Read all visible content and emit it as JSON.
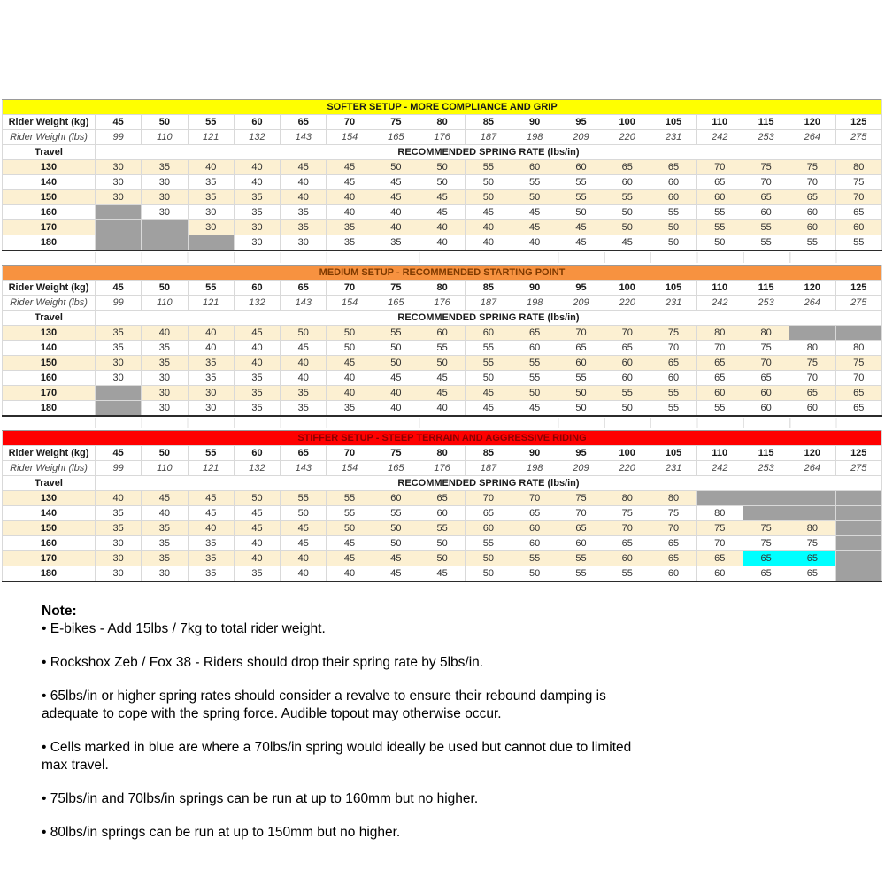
{
  "shared": {
    "rider_weight_kg_label": "Rider Weight (kg)",
    "rider_weight_lbs_label": "Rider Weight (lbs)",
    "travel_label": "Travel",
    "spring_rate_header": "RECOMMENDED SPRING RATE (lbs/in)",
    "columns_kg": [
      "45",
      "50",
      "55",
      "60",
      "65",
      "70",
      "75",
      "80",
      "85",
      "90",
      "95",
      "100",
      "105",
      "110",
      "115",
      "120",
      "125"
    ],
    "columns_lbs": [
      "99",
      "110",
      "121",
      "132",
      "143",
      "154",
      "165",
      "176",
      "187",
      "198",
      "209",
      "220",
      "231",
      "242",
      "253",
      "264",
      "275"
    ]
  },
  "colors": {
    "softer_band_bg": "#FFFF00",
    "softer_band_text": "#1a1a1a",
    "medium_band_bg": "#F79240",
    "medium_band_text": "#7F3A00",
    "stiffer_band_bg": "#FF0000",
    "stiffer_band_text": "#8B0000",
    "row_stripe": "#FCF0D2",
    "unavailable_fill": "#A0A0A0",
    "blue_highlight_fill": "#00FFFF"
  },
  "tables": [
    {
      "id": "softer",
      "title": "SOFTER SETUP - MORE COMPLIANCE AND GRIP",
      "band_bg": "#FFFF00",
      "band_fg": "#1a1a1a",
      "rows": [
        {
          "travel": "130",
          "cells": [
            "30",
            "35",
            "40",
            "40",
            "45",
            "45",
            "50",
            "50",
            "55",
            "60",
            "60",
            "65",
            "65",
            "70",
            "75",
            "75",
            "80"
          ]
        },
        {
          "travel": "140",
          "cells": [
            "30",
            "30",
            "35",
            "40",
            "40",
            "45",
            "45",
            "50",
            "50",
            "55",
            "55",
            "60",
            "60",
            "65",
            "70",
            "70",
            "75"
          ]
        },
        {
          "travel": "150",
          "cells": [
            "30",
            "30",
            "35",
            "35",
            "40",
            "40",
            "45",
            "45",
            "50",
            "50",
            "55",
            "55",
            "60",
            "60",
            "65",
            "65",
            "70"
          ]
        },
        {
          "travel": "160",
          "cells": [
            {
              "fill": "gray"
            },
            "30",
            "30",
            "35",
            "35",
            "40",
            "40",
            "45",
            "45",
            "45",
            "50",
            "50",
            "55",
            "55",
            "60",
            "60",
            "65"
          ]
        },
        {
          "travel": "170",
          "cells": [
            {
              "fill": "gray"
            },
            {
              "fill": "gray"
            },
            "30",
            "30",
            "35",
            "35",
            "40",
            "40",
            "40",
            "45",
            "45",
            "50",
            "50",
            "55",
            "55",
            "60",
            "60"
          ]
        },
        {
          "travel": "180",
          "cells": [
            {
              "fill": "gray"
            },
            {
              "fill": "gray"
            },
            {
              "fill": "gray"
            },
            "30",
            "30",
            "35",
            "35",
            "40",
            "40",
            "40",
            "45",
            "45",
            "50",
            "50",
            "55",
            "55",
            "55"
          ]
        }
      ]
    },
    {
      "id": "medium",
      "title": "MEDIUM SETUP - RECOMMENDED STARTING POINT",
      "band_bg": "#F79240",
      "band_fg": "#7F3A00",
      "rows": [
        {
          "travel": "130",
          "cells": [
            "35",
            "40",
            "40",
            "45",
            "50",
            "50",
            "55",
            "60",
            "60",
            "65",
            "70",
            "70",
            "75",
            "80",
            "80",
            {
              "fill": "gray"
            },
            {
              "fill": "gray"
            }
          ]
        },
        {
          "travel": "140",
          "cells": [
            "35",
            "35",
            "40",
            "40",
            "45",
            "50",
            "50",
            "55",
            "55",
            "60",
            "65",
            "65",
            "70",
            "70",
            "75",
            "80",
            "80"
          ]
        },
        {
          "travel": "150",
          "cells": [
            "30",
            "35",
            "35",
            "40",
            "40",
            "45",
            "50",
            "50",
            "55",
            "55",
            "60",
            "60",
            "65",
            "65",
            "70",
            "75",
            "75"
          ]
        },
        {
          "travel": "160",
          "cells": [
            "30",
            "30",
            "35",
            "35",
            "40",
            "40",
            "45",
            "45",
            "50",
            "55",
            "55",
            "60",
            "60",
            "65",
            "65",
            "70",
            "70"
          ]
        },
        {
          "travel": "170",
          "cells": [
            {
              "fill": "gray"
            },
            "30",
            "30",
            "35",
            "35",
            "40",
            "40",
            "45",
            "45",
            "50",
            "50",
            "55",
            "55",
            "60",
            "60",
            "65",
            "65"
          ]
        },
        {
          "travel": "180",
          "cells": [
            {
              "fill": "gray"
            },
            "30",
            "30",
            "35",
            "35",
            "35",
            "40",
            "40",
            "45",
            "45",
            "50",
            "50",
            "55",
            "55",
            "60",
            "60",
            "65"
          ]
        }
      ]
    },
    {
      "id": "stiffer",
      "title": "STIFFER SETUP - STEEP TERRAIN AND AGGRESSIVE RIDING",
      "band_bg": "#FF0000",
      "band_fg": "#8B0000",
      "rows": [
        {
          "travel": "130",
          "cells": [
            "40",
            "45",
            "45",
            "50",
            "55",
            "55",
            "60",
            "65",
            "70",
            "70",
            "75",
            "80",
            "80",
            {
              "fill": "gray"
            },
            {
              "fill": "gray"
            },
            {
              "fill": "gray"
            },
            {
              "fill": "gray"
            }
          ]
        },
        {
          "travel": "140",
          "cells": [
            "35",
            "40",
            "45",
            "45",
            "50",
            "55",
            "55",
            "60",
            "65",
            "65",
            "70",
            "75",
            "75",
            "80",
            {
              "fill": "gray"
            },
            {
              "fill": "gray"
            },
            {
              "fill": "gray"
            }
          ]
        },
        {
          "travel": "150",
          "cells": [
            "35",
            "35",
            "40",
            "45",
            "45",
            "50",
            "50",
            "55",
            "60",
            "60",
            "65",
            "70",
            "70",
            "75",
            "75",
            "80",
            {
              "fill": "gray"
            }
          ]
        },
        {
          "travel": "160",
          "cells": [
            "30",
            "35",
            "35",
            "40",
            "45",
            "45",
            "50",
            "50",
            "55",
            "60",
            "60",
            "65",
            "65",
            "70",
            "75",
            "75",
            {
              "fill": "gray"
            }
          ]
        },
        {
          "travel": "170",
          "cells": [
            "30",
            "35",
            "35",
            "40",
            "40",
            "45",
            "45",
            "50",
            "50",
            "55",
            "55",
            "60",
            "65",
            "65",
            {
              "v": "65",
              "fill": "cyan"
            },
            {
              "v": "65",
              "fill": "cyan"
            },
            {
              "fill": "gray"
            }
          ]
        },
        {
          "travel": "180",
          "cells": [
            "30",
            "30",
            "35",
            "35",
            "40",
            "40",
            "45",
            "45",
            "50",
            "50",
            "55",
            "55",
            "60",
            "60",
            "65",
            "65",
            {
              "fill": "gray"
            }
          ]
        }
      ]
    }
  ],
  "notes": {
    "heading": "Note:",
    "bullets": [
      "• E-bikes - Add 15lbs / 7kg to total rider weight.",
      "• Rockshox Zeb / Fox 38 - Riders should drop their spring rate by 5lbs/in.",
      "• 65lbs/in or higher spring rates should consider a revalve to ensure their rebound damping is\nadequate to cope with the spring force. Audible topout may otherwise occur.",
      "• Cells marked in blue are where a 70lbs/in spring would ideally be used but cannot due to limited\nmax travel.",
      "• 75lbs/in and 70lbs/in springs can be run at up to 160mm but no higher.",
      "• 80lbs/in springs can be run at up to 150mm but no higher."
    ]
  }
}
